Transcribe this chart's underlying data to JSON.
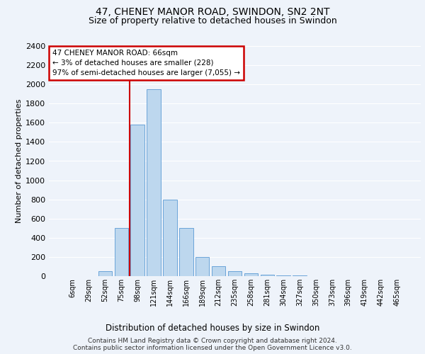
{
  "title_line1": "47, CHENEY MANOR ROAD, SWINDON, SN2 2NT",
  "title_line2": "Size of property relative to detached houses in Swindon",
  "xlabel": "Distribution of detached houses by size in Swindon",
  "ylabel": "Number of detached properties",
  "categories": [
    "6sqm",
    "29sqm",
    "52sqm",
    "75sqm",
    "98sqm",
    "121sqm",
    "144sqm",
    "166sqm",
    "189sqm",
    "212sqm",
    "235sqm",
    "258sqm",
    "281sqm",
    "304sqm",
    "327sqm",
    "350sqm",
    "373sqm",
    "396sqm",
    "419sqm",
    "442sqm",
    "465sqm"
  ],
  "values": [
    0,
    0,
    50,
    500,
    1580,
    1950,
    800,
    500,
    200,
    100,
    50,
    30,
    15,
    8,
    5,
    3,
    2,
    1,
    1,
    0,
    0
  ],
  "bar_color": "#BDD7EE",
  "bar_edge_color": "#5B9BD5",
  "vline_x_index": 3,
  "vline_color": "#CC0000",
  "annotation_text": "47 CHENEY MANOR ROAD: 66sqm\n← 3% of detached houses are smaller (228)\n97% of semi-detached houses are larger (7,055) →",
  "annotation_box_color": "#ffffff",
  "annotation_box_edge": "#CC0000",
  "ylim": [
    0,
    2400
  ],
  "yticks": [
    0,
    200,
    400,
    600,
    800,
    1000,
    1200,
    1400,
    1600,
    1800,
    2000,
    2200,
    2400
  ],
  "footnote1": "Contains HM Land Registry data © Crown copyright and database right 2024.",
  "footnote2": "Contains public sector information licensed under the Open Government Licence v3.0.",
  "bg_color": "#EEF3FA",
  "plot_bg_color": "#EEF3FA",
  "title1_fontsize": 10,
  "title2_fontsize": 9,
  "ylabel_fontsize": 8,
  "ytick_fontsize": 8,
  "xtick_fontsize": 7,
  "xlabel_fontsize": 8.5,
  "footnote_fontsize": 6.5,
  "annot_fontsize": 7.5
}
